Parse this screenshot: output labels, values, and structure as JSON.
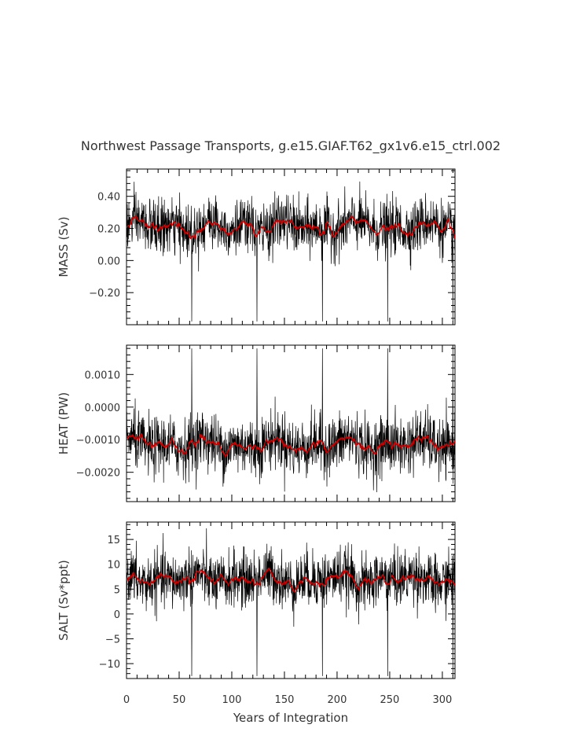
{
  "chart_data": {
    "type": "line",
    "title": "Northwest Passage Transports, g.e15.GIAF.T62_gx1v6.e15_ctrl.002",
    "xlabel": "Years of Integration",
    "xlim": [
      0,
      312
    ],
    "xticks": [
      0,
      50,
      100,
      150,
      200,
      250,
      300
    ],
    "xtick_labels": [
      "0",
      "50",
      "100",
      "150",
      "200",
      "250",
      "300"
    ],
    "colors": {
      "raw": "#000000",
      "smoothed": "#cc0000"
    },
    "panels": [
      {
        "id": "mass",
        "ylabel": "MASS (Sv)",
        "ylim": [
          -0.4,
          0.57
        ],
        "yticks": [
          -0.2,
          0.0,
          0.2,
          0.4
        ],
        "ytick_labels": [
          "−0.20",
          "0.00",
          "0.20",
          "0.40"
        ],
        "mean": 0.21,
        "noise": 0.085,
        "smooth_amp": 0.035,
        "spike_years": [
          62,
          124,
          186,
          248,
          310
        ],
        "spike_values": [
          -0.38,
          -0.38,
          -0.38,
          -0.38,
          -0.38
        ]
      },
      {
        "id": "heat",
        "ylabel": "HEAT (PW)",
        "ylim": [
          -0.0029,
          0.0019
        ],
        "yticks": [
          -0.002,
          -0.001,
          0.0,
          0.001
        ],
        "ytick_labels": [
          "−0.0020",
          "−0.0010",
          "0.0000",
          "0.0010"
        ],
        "mean": -0.00115,
        "noise": 0.00045,
        "smooth_amp": 0.0002,
        "spike_years": [
          62,
          124,
          186,
          248,
          310
        ],
        "spike_values": [
          0.0018,
          0.0018,
          0.0018,
          0.0018,
          0.0018
        ]
      },
      {
        "id": "salt",
        "ylabel": "SALT (Sv*ppt)",
        "ylim": [
          -13,
          18.5
        ],
        "yticks": [
          -10,
          -5,
          0,
          5,
          10,
          15
        ],
        "ytick_labels": [
          "−10",
          "−5",
          "0",
          "5",
          "10",
          "15"
        ],
        "mean": 7.0,
        "noise": 2.8,
        "smooth_amp": 1.2,
        "spike_years": [
          62,
          124,
          186,
          248,
          310
        ],
        "spike_values": [
          -12.5,
          -12.5,
          -12.5,
          -12.5,
          -12.5
        ]
      }
    ]
  }
}
